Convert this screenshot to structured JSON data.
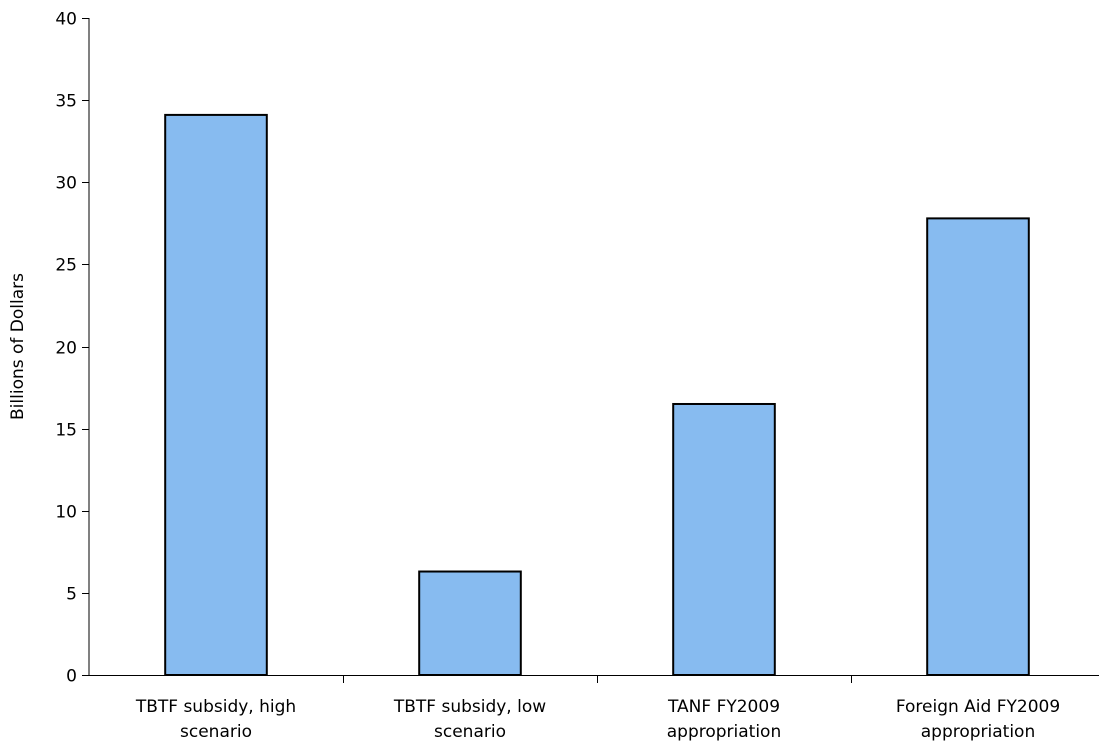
{
  "chart_data": {
    "type": "bar",
    "title": "",
    "xlabel": "",
    "ylabel": "Billions of Dollars",
    "ylim": [
      0,
      40
    ],
    "yticks": [
      0,
      5,
      10,
      15,
      20,
      25,
      30,
      35,
      40
    ],
    "categories": [
      [
        "TBTF subsidy, high",
        "scenario"
      ],
      [
        "TBTF subsidy, low",
        "scenario"
      ],
      [
        "TANF FY2009",
        "appropriation"
      ],
      [
        "Foreign Aid FY2009",
        "appropriation"
      ]
    ],
    "values": [
      34.1,
      6.3,
      16.5,
      27.8
    ],
    "grid": false,
    "legend": "none",
    "colors": {
      "bar_fill": "#87BBF0",
      "bar_stroke": "#000000",
      "axis": "#000000"
    }
  }
}
